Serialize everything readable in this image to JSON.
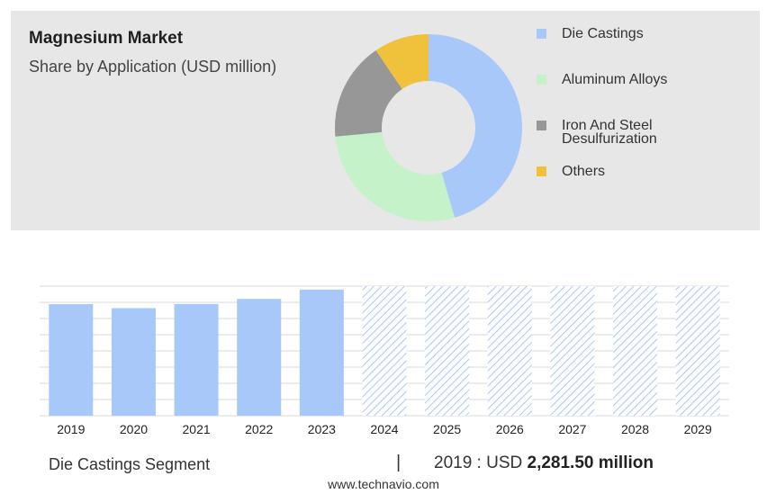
{
  "header": {
    "title": "Magnesium Market",
    "subtitle": "Share by Application (USD million)"
  },
  "chart_data": [
    {
      "type": "pie",
      "variant": "donut",
      "title": "Magnesium Market",
      "subtitle": "Share by Application (USD million)",
      "slices": [
        {
          "label": "Die Castings",
          "share": 0.455,
          "color": "#a8c8fa"
        },
        {
          "label": "Aluminum Alloys",
          "share": 0.28,
          "color": "#c6f2c9"
        },
        {
          "label": "Iron And Steel Desulfurization",
          "share": 0.17,
          "color": "#979797"
        },
        {
          "label": "Others",
          "share": 0.095,
          "color": "#f0c23c"
        }
      ],
      "legend_position": "right"
    },
    {
      "type": "bar",
      "title": "Die Castings Segment",
      "categories": [
        "2019",
        "2020",
        "2021",
        "2022",
        "2023",
        "2024",
        "2025",
        "2026",
        "2027",
        "2028",
        "2029"
      ],
      "values": [
        2281.5,
        2200,
        2285,
        2390,
        2580,
        null,
        null,
        null,
        null,
        null,
        null
      ],
      "forecast_from": "2024",
      "bar_color": "#a8c8fa",
      "forecast_pattern": "hatched",
      "ylim": [
        0,
        2650
      ],
      "grid": true
    }
  ],
  "footer": {
    "segment_label": "Die Castings Segment",
    "separator": "|",
    "value_prefix": "2019 : USD ",
    "value_bold": "2,281.50 million",
    "source": "www.technavio.com"
  }
}
